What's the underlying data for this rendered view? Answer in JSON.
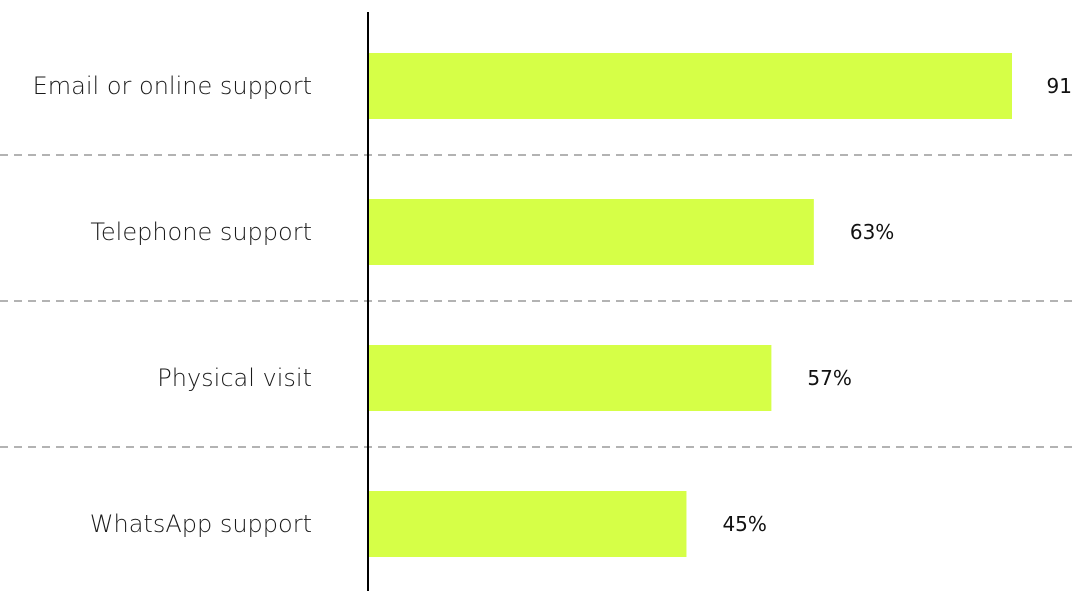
{
  "chart_data": {
    "type": "bar",
    "orientation": "horizontal",
    "categories": [
      "Email or online support",
      "Telephone support",
      "Physical visit",
      "WhatsApp support"
    ],
    "values": [
      91,
      63,
      57,
      45
    ],
    "value_labels": [
      "91",
      "63%",
      "57%",
      "45%"
    ],
    "bar_color": "#d6ff47",
    "separator_color": "#b3b3b3",
    "axis_color": "#000000",
    "grid": false,
    "legend": "none",
    "title": "",
    "xlabel": "",
    "ylabel": ""
  }
}
